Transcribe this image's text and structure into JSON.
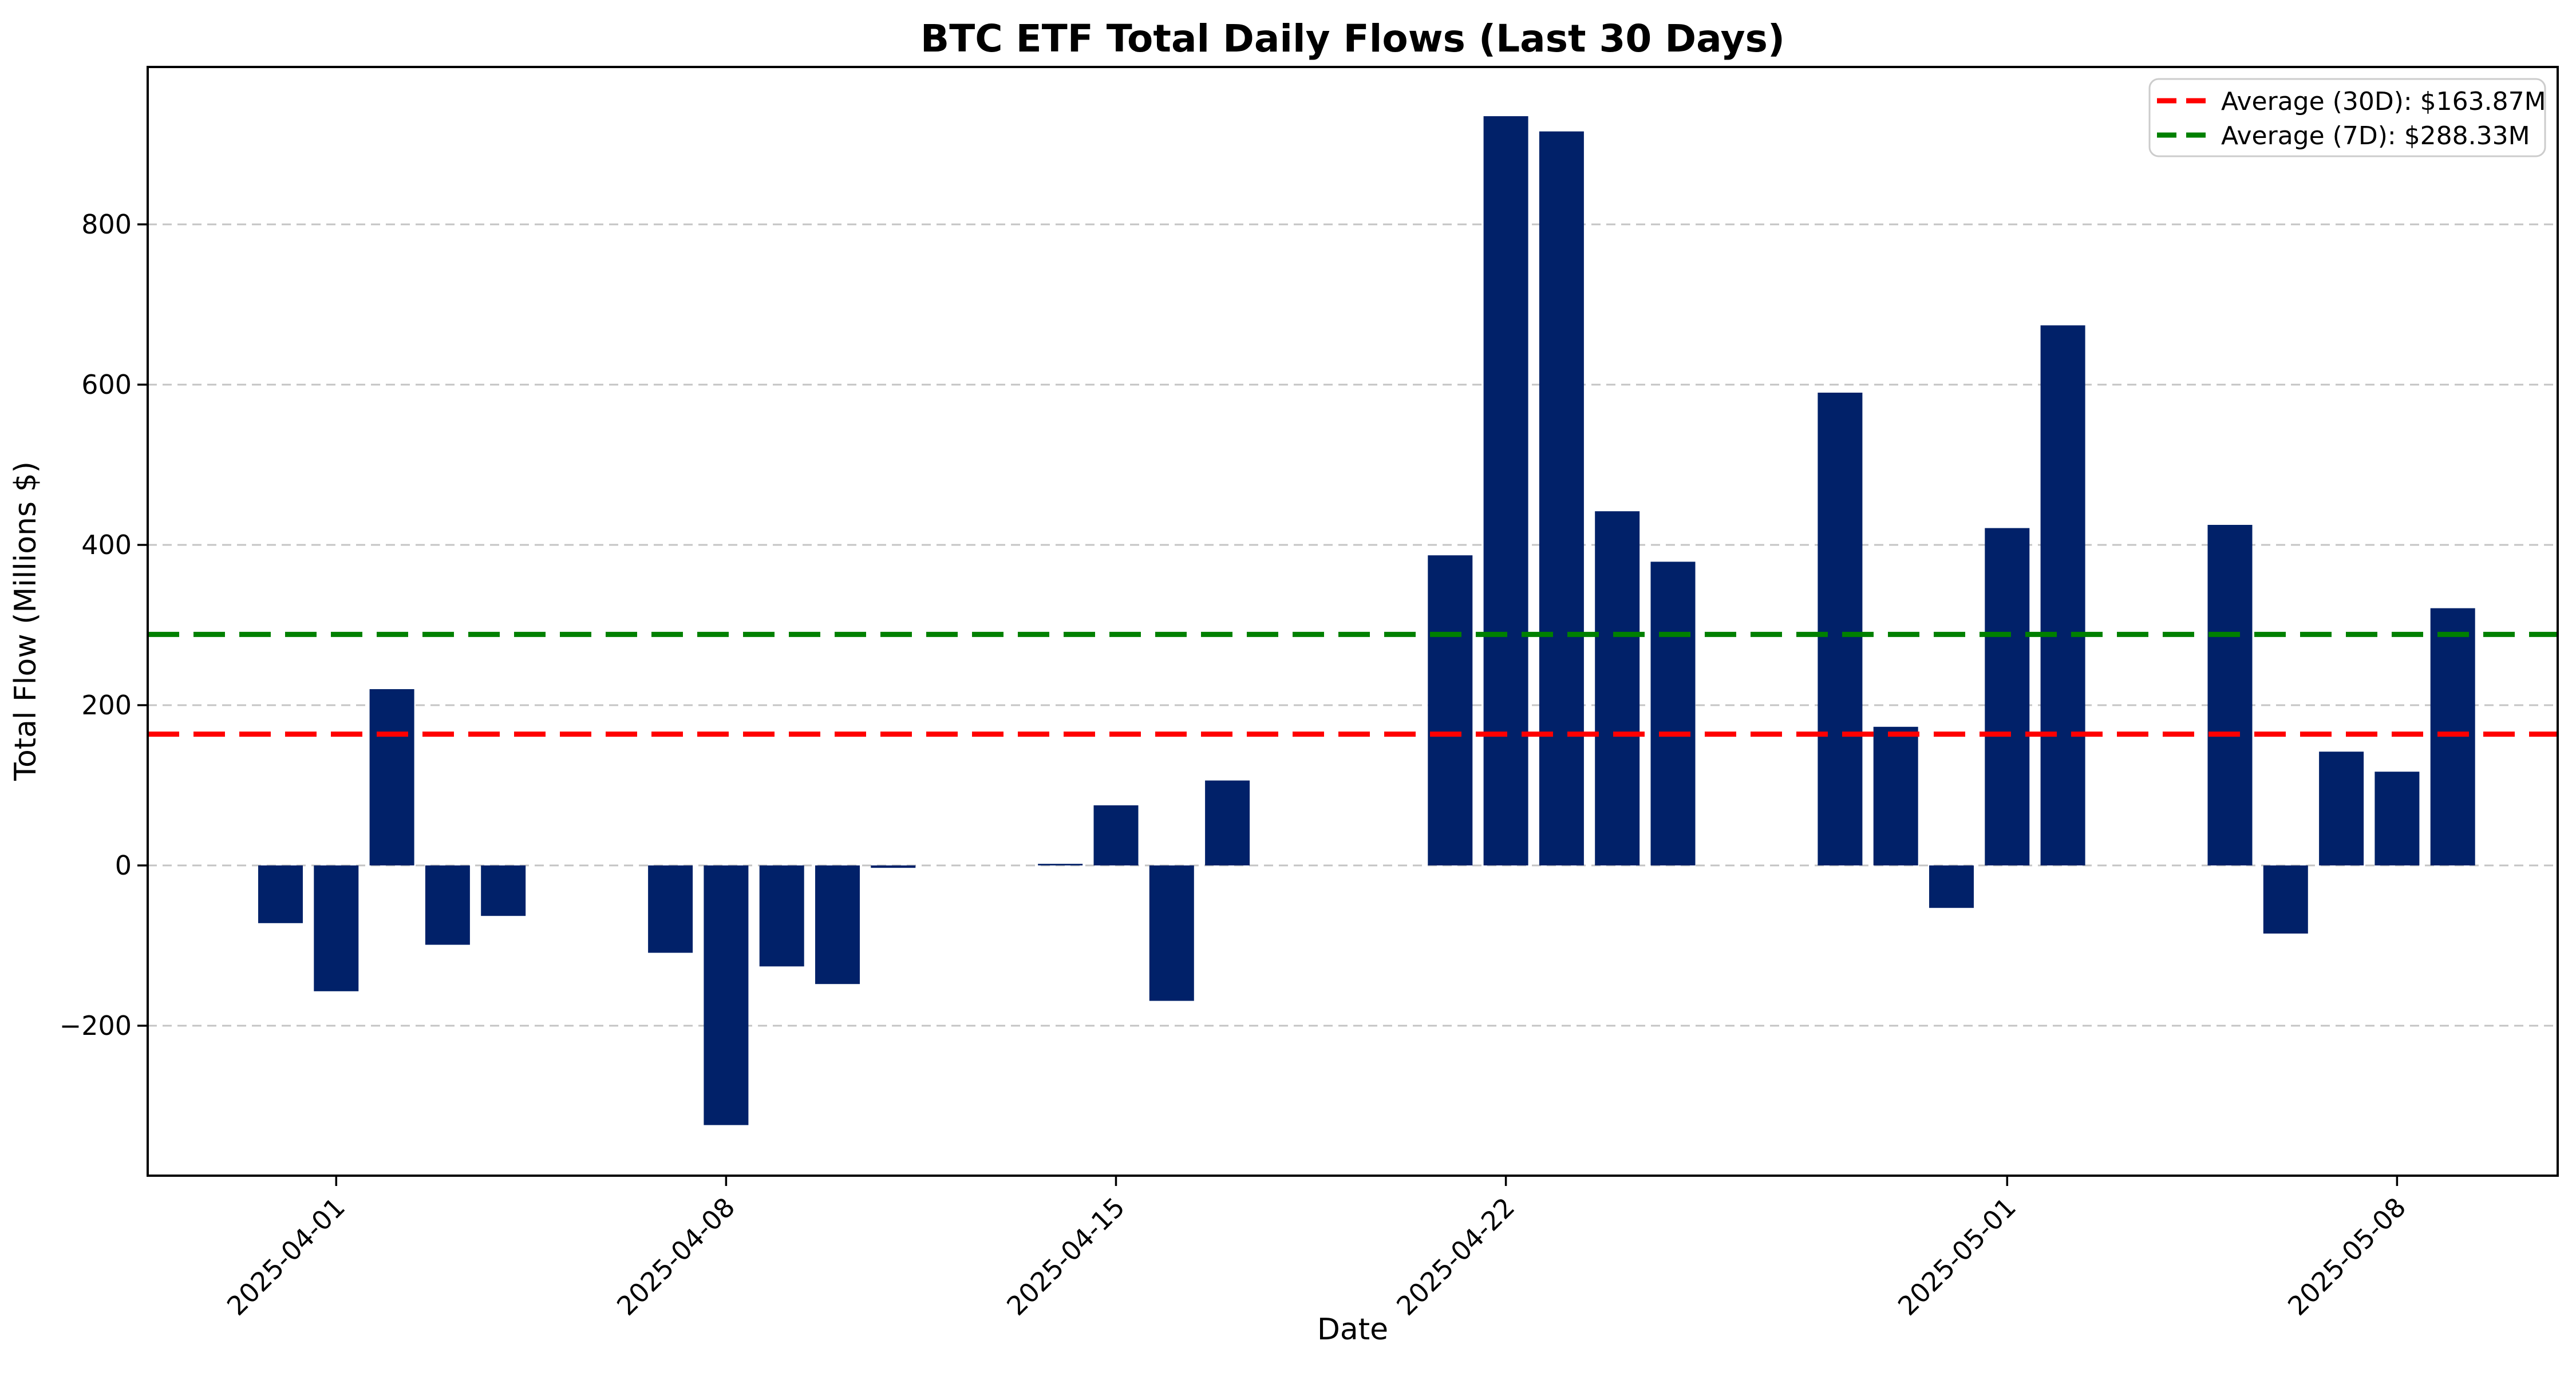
{
  "chart_data": {
    "type": "bar",
    "title": "BTC ETF Total Daily Flows (Last 30 Days)",
    "xlabel": "Date",
    "ylabel": "Total Flow (Millions $)",
    "background_color": "#ffffff",
    "bar_color": "#012169",
    "grid_color": "#c4c4c4",
    "spine_color": "#000000",
    "grid": true,
    "legend_position": "upper right",
    "ylim": [
      -387,
      996
    ],
    "yticks": [
      {
        "value": -200,
        "label": "−200"
      },
      {
        "value": 0,
        "label": "0"
      },
      {
        "value": 200,
        "label": "200"
      },
      {
        "value": 400,
        "label": "400"
      },
      {
        "value": 600,
        "label": "600"
      },
      {
        "value": 800,
        "label": "800"
      }
    ],
    "xticks": [
      {
        "date": "2025-04-01",
        "label": "2025-04-01"
      },
      {
        "date": "2025-04-08",
        "label": "2025-04-08"
      },
      {
        "date": "2025-04-15",
        "label": "2025-04-15"
      },
      {
        "date": "2025-04-22",
        "label": "2025-04-22"
      },
      {
        "date": "2025-05-01",
        "label": "2025-05-01"
      },
      {
        "date": "2025-05-08",
        "label": "2025-05-08"
      }
    ],
    "bars": [
      {
        "date": "2025-03-31",
        "value": -72
      },
      {
        "date": "2025-04-01",
        "value": -157
      },
      {
        "date": "2025-04-02",
        "value": 220
      },
      {
        "date": "2025-04-03",
        "value": -99
      },
      {
        "date": "2025-04-04",
        "value": -63
      },
      {
        "date": "2025-04-07",
        "value": -109
      },
      {
        "date": "2025-04-08",
        "value": -324
      },
      {
        "date": "2025-04-09",
        "value": -126
      },
      {
        "date": "2025-04-10",
        "value": -148
      },
      {
        "date": "2025-04-11",
        "value": -3
      },
      {
        "date": "2025-04-14",
        "value": 2
      },
      {
        "date": "2025-04-15",
        "value": 75
      },
      {
        "date": "2025-04-16",
        "value": -169
      },
      {
        "date": "2025-04-17",
        "value": 106
      },
      {
        "date": "2025-04-21",
        "value": 387
      },
      {
        "date": "2025-04-22",
        "value": 935
      },
      {
        "date": "2025-04-23",
        "value": 916
      },
      {
        "date": "2025-04-24",
        "value": 442
      },
      {
        "date": "2025-04-25",
        "value": 379
      },
      {
        "date": "2025-04-28",
        "value": 590
      },
      {
        "date": "2025-04-29",
        "value": 173
      },
      {
        "date": "2025-04-30",
        "value": -53
      },
      {
        "date": "2025-05-01",
        "value": 421
      },
      {
        "date": "2025-05-02",
        "value": 674
      },
      {
        "date": "2025-05-05",
        "value": 425
      },
      {
        "date": "2025-05-06",
        "value": -85
      },
      {
        "date": "2025-05-07",
        "value": 142
      },
      {
        "date": "2025-05-08",
        "value": 117
      },
      {
        "date": "2025-05-09",
        "value": 321
      }
    ],
    "average_lines": [
      {
        "name": "average-30d",
        "label": "Average (30D): $163.87M",
        "value": 163.87,
        "color": "#ff0000"
      },
      {
        "name": "average-7d",
        "label": "Average (7D): $288.33M",
        "value": 288.33,
        "color": "#008000"
      }
    ]
  }
}
